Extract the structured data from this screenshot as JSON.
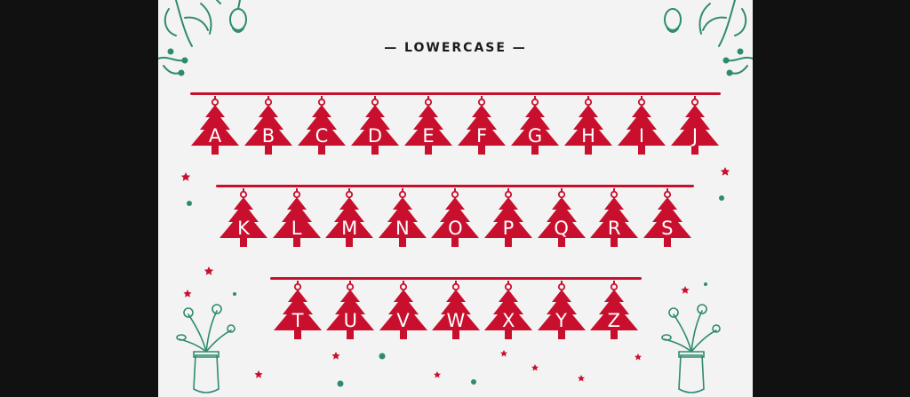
{
  "heading": "— LOWERCASE —",
  "rows": [
    [
      "A",
      "B",
      "C",
      "D",
      "E",
      "F",
      "G",
      "H",
      "I",
      "J"
    ],
    [
      "K",
      "L",
      "M",
      "N",
      "O",
      "P",
      "Q",
      "R",
      "S"
    ],
    [
      "T",
      "U",
      "V",
      "W",
      "X",
      "Y",
      "Z"
    ]
  ],
  "colors": {
    "background": "#111111",
    "card": "#f3f3f3",
    "tree_red": "#c8102e",
    "letter": "#ffffff",
    "floral_green": "#2e8b6e",
    "star_red": "#c8102e"
  },
  "icons": [
    "floral-corner-icon",
    "flower-jar-icon",
    "star-icon",
    "dot-icon",
    "christmas-tree-icon"
  ]
}
